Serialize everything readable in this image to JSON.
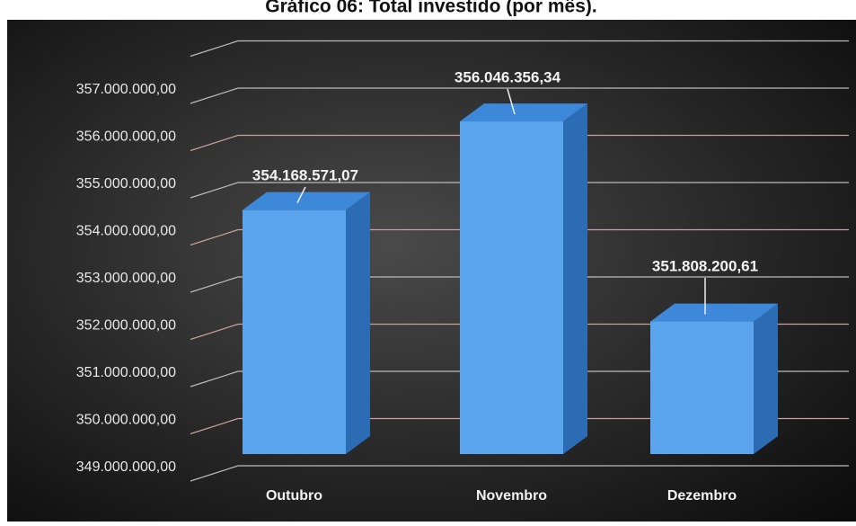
{
  "chart_data": {
    "type": "bar3d",
    "title": "Gráfico 06: Total investido (por mês).",
    "categories": [
      "Outubro",
      "Novembro",
      "Dezembro"
    ],
    "values": [
      354168571.07,
      356046356.34,
      351808200.61
    ],
    "value_labels": [
      "354.168.571,07",
      "356.046.356,34",
      "351.808.200,61"
    ],
    "color": "#5aa5ee",
    "ylim": [
      349000000,
      358000000
    ],
    "yticks": [
      {
        "value": 349000000,
        "label": "349.000.000,00"
      },
      {
        "value": 350000000,
        "label": "350.000.000,00"
      },
      {
        "value": 351000000,
        "label": "351.000.000,00"
      },
      {
        "value": 352000000,
        "label": "352.000.000,00"
      },
      {
        "value": 353000000,
        "label": "353.000.000,00"
      },
      {
        "value": 354000000,
        "label": "354.000.000,00"
      },
      {
        "value": 355000000,
        "label": "355.000.000,00"
      },
      {
        "value": 356000000,
        "label": "356.000.000,00"
      },
      {
        "value": 357000000,
        "label": "357.000.000,00"
      }
    ],
    "grid": true
  }
}
